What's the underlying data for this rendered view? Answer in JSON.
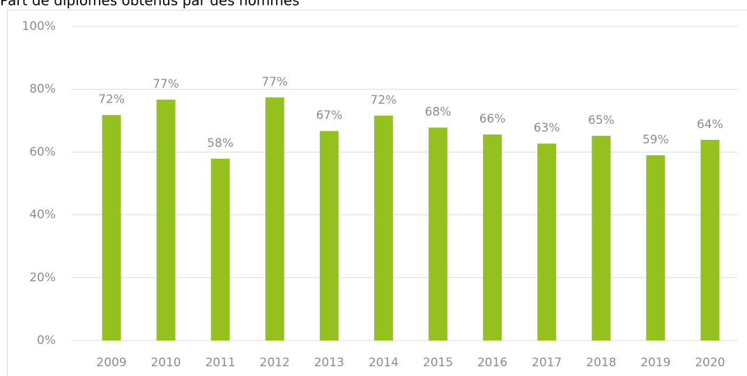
{
  "chart_data": {
    "type": "bar",
    "title": "Part de diplômes obtenus par des hommes",
    "categories": [
      "2009",
      "2010",
      "2011",
      "2012",
      "2013",
      "2014",
      "2015",
      "2016",
      "2017",
      "2018",
      "2019",
      "2020"
    ],
    "values": [
      71.8,
      76.7,
      57.9,
      77.4,
      66.7,
      71.6,
      67.8,
      65.6,
      62.7,
      65.2,
      59.0,
      63.9
    ],
    "value_labels": [
      "72%",
      "77%",
      "58%",
      "77%",
      "67%",
      "72%",
      "68%",
      "66%",
      "63%",
      "65%",
      "59%",
      "64%"
    ],
    "color": "#95c11f",
    "ylim": [
      0,
      100
    ],
    "yticks": [
      {
        "value": 0,
        "label": "0%"
      },
      {
        "value": 20,
        "label": "20%"
      },
      {
        "value": 40,
        "label": "40%"
      },
      {
        "value": 60,
        "label": "60%"
      },
      {
        "value": 80,
        "label": "80%"
      },
      {
        "value": 100,
        "label": "100%"
      }
    ],
    "grid": true
  }
}
